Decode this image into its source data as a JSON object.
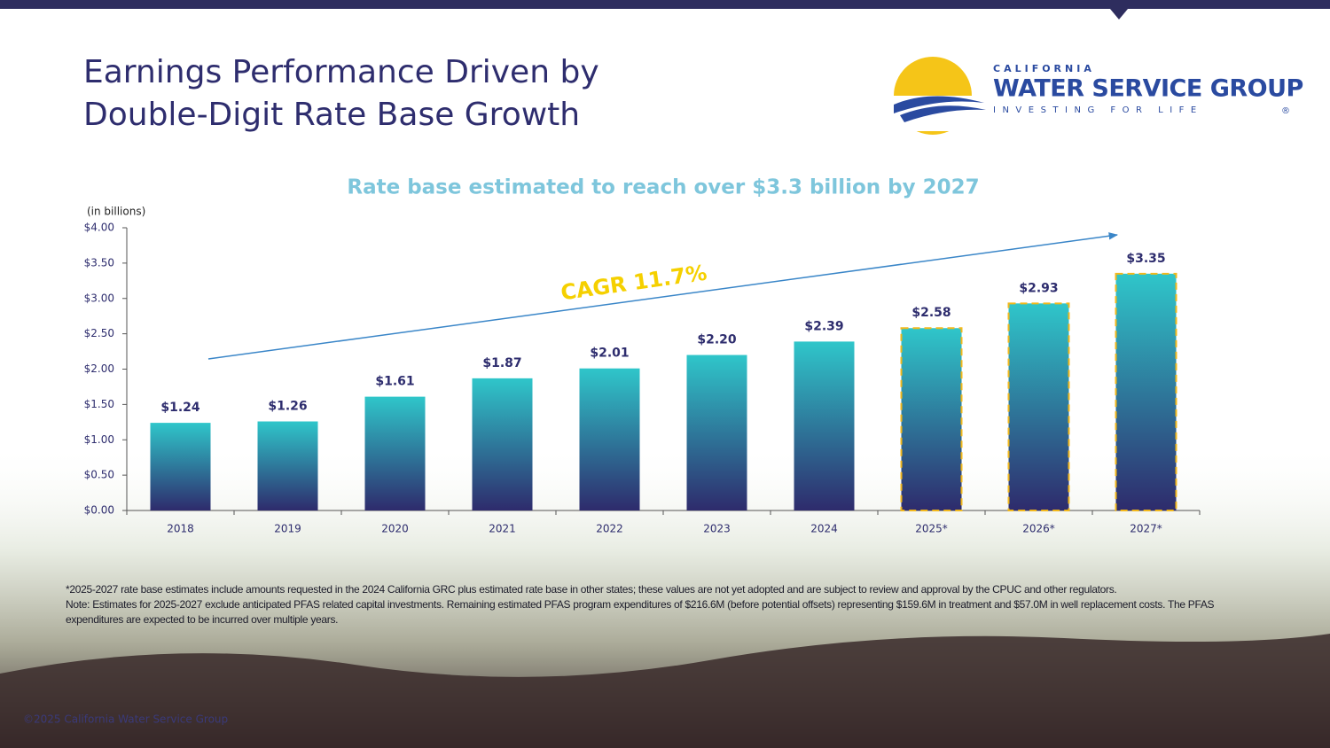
{
  "title_lines": [
    "Earnings Performance Driven by",
    "Double-Digit Rate Base Growth"
  ],
  "logo": {
    "top": "CALIFORNIA",
    "name": "WATER SERVICE GROUP",
    "tagline": "INVESTING FOR LIFE",
    "mark": "®"
  },
  "chart_data": {
    "type": "bar",
    "title": "Rate base estimated to reach over $3.3 billion by 2027",
    "y_label": "(in billions)",
    "annotation": "CAGR 11.7%",
    "categories": [
      "2018",
      "2019",
      "2020",
      "2021",
      "2022",
      "2023",
      "2024",
      "2025*",
      "2026*",
      "2027*"
    ],
    "values": [
      1.24,
      1.26,
      1.61,
      1.87,
      2.01,
      2.2,
      2.39,
      2.58,
      2.93,
      3.35
    ],
    "value_labels": [
      "$1.24",
      "$1.26",
      "$1.61",
      "$1.87",
      "$2.01",
      "$2.20",
      "$2.39",
      "$2.58",
      "$2.93",
      "$3.35"
    ],
    "bar_style": [
      "solid",
      "solid",
      "solid",
      "solid",
      "solid",
      "solid",
      "solid",
      "dashed",
      "dashed",
      "dashed"
    ],
    "color_top": "#2fc6ca",
    "color_bottom": "#2e2b6c",
    "dash_color": "#f2b81c",
    "ylim": [
      0,
      4
    ],
    "yticks": [
      {
        "value": 0,
        "label": "$0.00"
      },
      {
        "value": 0.5,
        "label": "$0.50"
      },
      {
        "value": 1,
        "label": "$1.00"
      },
      {
        "value": 1.5,
        "label": "$1.50"
      },
      {
        "value": 2,
        "label": "$2.00"
      },
      {
        "value": 2.5,
        "label": "$2.50"
      },
      {
        "value": 3,
        "label": "$3.00"
      },
      {
        "value": 3.5,
        "label": "$3.50"
      },
      {
        "value": 4,
        "label": "$4.00"
      }
    ],
    "grid": false
  },
  "footnotes": [
    "*2025-2027 rate base estimates include amounts requested in the 2024 California GRC plus estimated rate base in other states; these values are not yet adopted and are subject to review and approval by the CPUC and other regulators.",
    "Note: Estimates for 2025-2027 exclude anticipated PFAS related capital investments. Remaining estimated PFAS program expenditures of $216.6M (before potential offsets) representing $159.6M in treatment and $57.0M in well replacement costs. The PFAS expenditures are expected to be incurred over multiple years."
  ],
  "copyright": "©2025 California Water Service Group"
}
